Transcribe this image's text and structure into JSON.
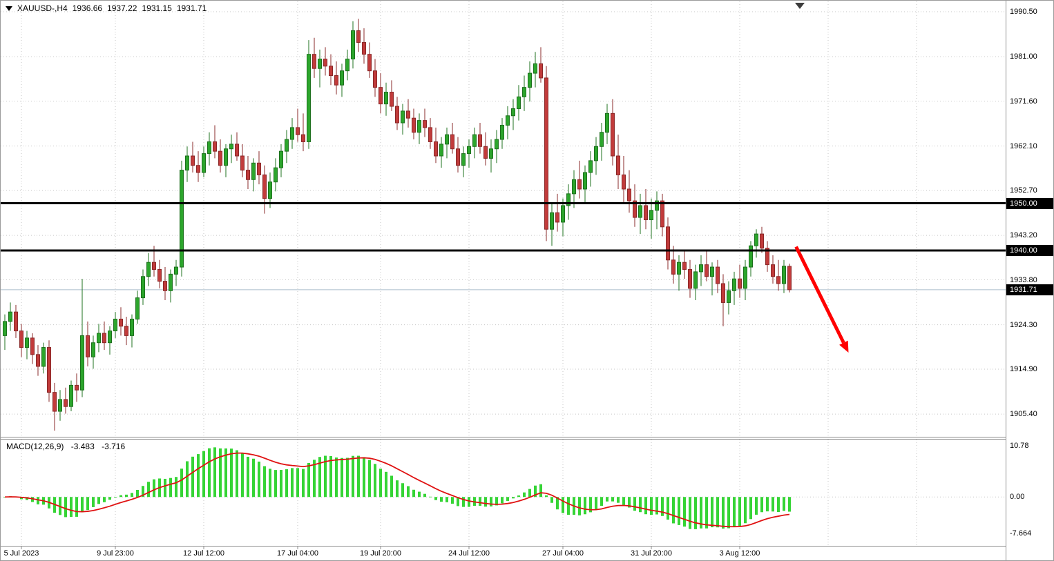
{
  "window": {
    "symbol_period": "XAUUSD-,H4",
    "open": "1936.66",
    "high": "1937.22",
    "low": "1931.15",
    "close": "1931.71"
  },
  "chart_data": {
    "type": "candlestick",
    "symbol": "XAUUSD-",
    "timeframe": "H4",
    "price_axis": {
      "ticks": [
        1990.5,
        1981.0,
        1971.6,
        1962.1,
        1952.7,
        1943.2,
        1933.8,
        1924.3,
        1914.9,
        1905.4
      ],
      "tick_labels": [
        "1990.50",
        "1981.00",
        "1971.60",
        "1962.10",
        "1952.70",
        "1943.20",
        "1933.80",
        "1924.30",
        "1914.90",
        "1905.40"
      ]
    },
    "hlines": [
      {
        "price": 1950.0,
        "label": "1950.00"
      },
      {
        "price": 1940.0,
        "label": "1940.00"
      }
    ],
    "current_price": {
      "price": 1931.71,
      "label": "1931.71"
    },
    "time_axis": [
      {
        "label": "5 Jul 2023",
        "index": 3
      },
      {
        "label": "9 Jul 23:00",
        "index": 20
      },
      {
        "label": "12 Jul 12:00",
        "index": 36
      },
      {
        "label": "17 Jul 04:00",
        "index": 53
      },
      {
        "label": "19 Jul 20:00",
        "index": 68
      },
      {
        "label": "24 Jul 12:00",
        "index": 84
      },
      {
        "label": "27 Jul 04:00",
        "index": 101
      },
      {
        "label": "31 Jul 20:00",
        "index": 117
      },
      {
        "label": "3 Aug 12:00",
        "index": 133
      }
    ],
    "candles_ohlc": [
      [
        1922,
        1926.5,
        1919,
        1925
      ],
      [
        1925,
        1929,
        1923,
        1927
      ],
      [
        1927,
        1928.5,
        1921.5,
        1923
      ],
      [
        1923,
        1924.5,
        1917.5,
        1919.5
      ],
      [
        1919.5,
        1923,
        1917,
        1921.5
      ],
      [
        1921.5,
        1922.5,
        1916,
        1918
      ],
      [
        1918,
        1920,
        1913.5,
        1915.5
      ],
      [
        1915.5,
        1920.5,
        1914,
        1919.5
      ],
      [
        1919.5,
        1921,
        1908,
        1910
      ],
      [
        1910,
        1912,
        1901.9,
        1906
      ],
      [
        1906,
        1910.5,
        1904,
        1908.5
      ],
      [
        1908.5,
        1911,
        1905.5,
        1907
      ],
      [
        1907,
        1912.5,
        1906,
        1911.5
      ],
      [
        1911.5,
        1914,
        1908,
        1910.5
      ],
      [
        1910.5,
        1934,
        1909,
        1922
      ],
      [
        1922,
        1925,
        1915.5,
        1917.5
      ],
      [
        1917.5,
        1922,
        1915,
        1920.5
      ],
      [
        1920.5,
        1924.5,
        1918.5,
        1922.5
      ],
      [
        1922.5,
        1925,
        1919,
        1920.5
      ],
      [
        1920.5,
        1924,
        1918,
        1923
      ],
      [
        1923,
        1927,
        1921.5,
        1925.5
      ],
      [
        1925.5,
        1928,
        1922,
        1924
      ],
      [
        1924,
        1926,
        1920,
        1922
      ],
      [
        1922,
        1926.5,
        1919.5,
        1925.5
      ],
      [
        1925.5,
        1931.5,
        1924.5,
        1930
      ],
      [
        1930,
        1936,
        1928.5,
        1934.5
      ],
      [
        1934.5,
        1939.5,
        1932.5,
        1937.5
      ],
      [
        1937.5,
        1941,
        1934.5,
        1936
      ],
      [
        1936,
        1938,
        1932,
        1933.5
      ],
      [
        1933.5,
        1936.5,
        1929.5,
        1931.5
      ],
      [
        1931.5,
        1936,
        1929,
        1935
      ],
      [
        1935,
        1938,
        1932.5,
        1936.5
      ],
      [
        1936.5,
        1959,
        1934.5,
        1957
      ],
      [
        1957,
        1962,
        1954.5,
        1960
      ],
      [
        1960,
        1963,
        1956.5,
        1958
      ],
      [
        1958,
        1961,
        1954.5,
        1956.5
      ],
      [
        1956.5,
        1962,
        1955.5,
        1960.5
      ],
      [
        1960.5,
        1965,
        1958,
        1963
      ],
      [
        1963,
        1966.5,
        1959.5,
        1961
      ],
      [
        1961,
        1963.5,
        1956.5,
        1958
      ],
      [
        1958,
        1962.5,
        1955.5,
        1961.5
      ],
      [
        1961.5,
        1964.5,
        1958.5,
        1962.5
      ],
      [
        1962.5,
        1965,
        1959,
        1960
      ],
      [
        1960,
        1962.5,
        1955.5,
        1957
      ],
      [
        1957,
        1960,
        1953,
        1955
      ],
      [
        1955,
        1959.5,
        1952.5,
        1958.5
      ],
      [
        1958.5,
        1961,
        1954,
        1956
      ],
      [
        1956,
        1958,
        1947.8,
        1951
      ],
      [
        1951,
        1956.5,
        1949,
        1954.5
      ],
      [
        1954.5,
        1959.5,
        1952.5,
        1957.5
      ],
      [
        1957.5,
        1962.5,
        1955.5,
        1961
      ],
      [
        1961,
        1965.5,
        1958.5,
        1963.5
      ],
      [
        1963.5,
        1968,
        1961.5,
        1966
      ],
      [
        1966,
        1970,
        1963,
        1964.5
      ],
      [
        1964.5,
        1969,
        1961,
        1963
      ],
      [
        1963,
        1984.5,
        1961.5,
        1981.5
      ],
      [
        1981.5,
        1985,
        1976.5,
        1978.5
      ],
      [
        1978.5,
        1982.5,
        1974.5,
        1980.5
      ],
      [
        1980.5,
        1983,
        1977,
        1979
      ],
      [
        1979,
        1981.5,
        1975,
        1977
      ],
      [
        1977,
        1980,
        1973,
        1975
      ],
      [
        1975,
        1979.5,
        1972.5,
        1978
      ],
      [
        1978,
        1982.5,
        1976,
        1980.5
      ],
      [
        1980.5,
        1988.5,
        1978.5,
        1986.5
      ],
      [
        1986.5,
        1989,
        1982,
        1984
      ],
      [
        1984,
        1987,
        1979.5,
        1981.5
      ],
      [
        1981.5,
        1984,
        1976.5,
        1978
      ],
      [
        1978,
        1980.5,
        1972.5,
        1974.5
      ],
      [
        1974.5,
        1977.5,
        1969,
        1971
      ],
      [
        1971,
        1975.5,
        1968.5,
        1973.5
      ],
      [
        1973.5,
        1976,
        1969.5,
        1970.5
      ],
      [
        1970.5,
        1972.5,
        1965.5,
        1967
      ],
      [
        1967,
        1971,
        1964.5,
        1969.5
      ],
      [
        1969.5,
        1972,
        1966,
        1968
      ],
      [
        1968,
        1970,
        1963.5,
        1965
      ],
      [
        1965,
        1969,
        1962.5,
        1967.5
      ],
      [
        1967.5,
        1970,
        1964,
        1966
      ],
      [
        1966,
        1968,
        1961.5,
        1963
      ],
      [
        1963,
        1966,
        1958.5,
        1960
      ],
      [
        1960,
        1964,
        1957.5,
        1962.5
      ],
      [
        1962.5,
        1966,
        1959.5,
        1964.5
      ],
      [
        1964.5,
        1967,
        1960.5,
        1961.5
      ],
      [
        1961.5,
        1964,
        1956.5,
        1958
      ],
      [
        1958,
        1962,
        1955.5,
        1960.5
      ],
      [
        1960.5,
        1963.5,
        1957.5,
        1962
      ],
      [
        1962,
        1966,
        1959.5,
        1964.5
      ],
      [
        1964.5,
        1967,
        1960.5,
        1962
      ],
      [
        1962,
        1965,
        1958,
        1959.5
      ],
      [
        1959.5,
        1963.5,
        1956.5,
        1961.5
      ],
      [
        1961.5,
        1965.5,
        1958.5,
        1963.5
      ],
      [
        1963.5,
        1968,
        1961.5,
        1966.5
      ],
      [
        1966.5,
        1970.5,
        1963.5,
        1968.5
      ],
      [
        1968.5,
        1972,
        1965.5,
        1970
      ],
      [
        1970,
        1975,
        1967.5,
        1972.5
      ],
      [
        1972.5,
        1977,
        1969.5,
        1974.5
      ],
      [
        1974.5,
        1980,
        1971.5,
        1977.5
      ],
      [
        1977.5,
        1982,
        1974.5,
        1979.5
      ],
      [
        1979.5,
        1983,
        1975.5,
        1976.5
      ],
      [
        1976.5,
        1979,
        1942,
        1944.5
      ],
      [
        1944.5,
        1950,
        1941,
        1948
      ],
      [
        1948,
        1952,
        1944,
        1946
      ],
      [
        1946,
        1951,
        1943,
        1949.5
      ],
      [
        1949.5,
        1954,
        1946.5,
        1952
      ],
      [
        1952,
        1957,
        1949,
        1955
      ],
      [
        1955,
        1959,
        1951,
        1953
      ],
      [
        1953,
        1958,
        1950,
        1956.5
      ],
      [
        1956.5,
        1961,
        1953.5,
        1959
      ],
      [
        1959,
        1964,
        1956,
        1962
      ],
      [
        1962,
        1967,
        1959,
        1965
      ],
      [
        1965,
        1971,
        1962.5,
        1969
      ],
      [
        1969,
        1972,
        1958,
        1960
      ],
      [
        1960,
        1964.5,
        1953,
        1956
      ],
      [
        1956,
        1960,
        1950,
        1953
      ],
      [
        1953,
        1957,
        1948,
        1950.5
      ],
      [
        1950.5,
        1954,
        1945,
        1947
      ],
      [
        1947,
        1952,
        1943.5,
        1949.5
      ],
      [
        1949.5,
        1953,
        1944.5,
        1946.5
      ],
      [
        1946.5,
        1951,
        1942.5,
        1948.5
      ],
      [
        1948.5,
        1952.5,
        1944.5,
        1950.5
      ],
      [
        1950.5,
        1952,
        1943,
        1945
      ],
      [
        1945,
        1947,
        1936,
        1938
      ],
      [
        1938,
        1941,
        1933,
        1935
      ],
      [
        1935,
        1939,
        1931.5,
        1937.5
      ],
      [
        1937.5,
        1940,
        1934,
        1936
      ],
      [
        1936,
        1938,
        1930,
        1932
      ],
      [
        1932,
        1937,
        1929.5,
        1935.5
      ],
      [
        1935.5,
        1939,
        1932.5,
        1937
      ],
      [
        1937,
        1940,
        1933.5,
        1934.5
      ],
      [
        1934.5,
        1937.5,
        1930.5,
        1936.5
      ],
      [
        1936.5,
        1938,
        1931,
        1933
      ],
      [
        1933,
        1935,
        1924,
        1929
      ],
      [
        1929,
        1933.5,
        1926.5,
        1931.5
      ],
      [
        1931.5,
        1935.5,
        1928.5,
        1934
      ],
      [
        1934,
        1937,
        1930,
        1932
      ],
      [
        1932,
        1938,
        1929.5,
        1936.5
      ],
      [
        1936.5,
        1942,
        1934.5,
        1941
      ],
      [
        1941,
        1944.5,
        1938.5,
        1943.5
      ],
      [
        1943.5,
        1945,
        1939.5,
        1940.5
      ],
      [
        1940.5,
        1942,
        1935.5,
        1937
      ],
      [
        1937,
        1939,
        1933,
        1934.5
      ],
      [
        1934.5,
        1938,
        1931.5,
        1933
      ],
      [
        1933,
        1938,
        1931,
        1936.7
      ],
      [
        1936.66,
        1937.22,
        1931.15,
        1931.71
      ]
    ],
    "macd": {
      "title": "MACD(12,26,9)",
      "params": [
        12,
        26,
        9
      ],
      "value_main": "-3.483",
      "value_signal": "-3.716",
      "axis_ticks": [
        10.78,
        0.0,
        -7.664
      ],
      "axis_tick_labels": [
        "10.78",
        "0.00",
        "-7.664"
      ],
      "range": [
        -7.664,
        10.78
      ]
    },
    "annotations": {
      "arrow": {
        "from_index": 143.2,
        "from_price": 1940.8,
        "to_index": 151.8,
        "to_price": 1920.5,
        "color": "#ff0000"
      }
    },
    "colors": {
      "up": "#2ca52c",
      "down": "#c13b3b",
      "up_border": "#1d701d",
      "down_border": "#8a2828",
      "macd_hist": "#35d435",
      "macd_signal": "#e01212",
      "grid": "#c6c6c6",
      "sr_line": "#000000",
      "current_price_line": "#aabccb"
    }
  }
}
